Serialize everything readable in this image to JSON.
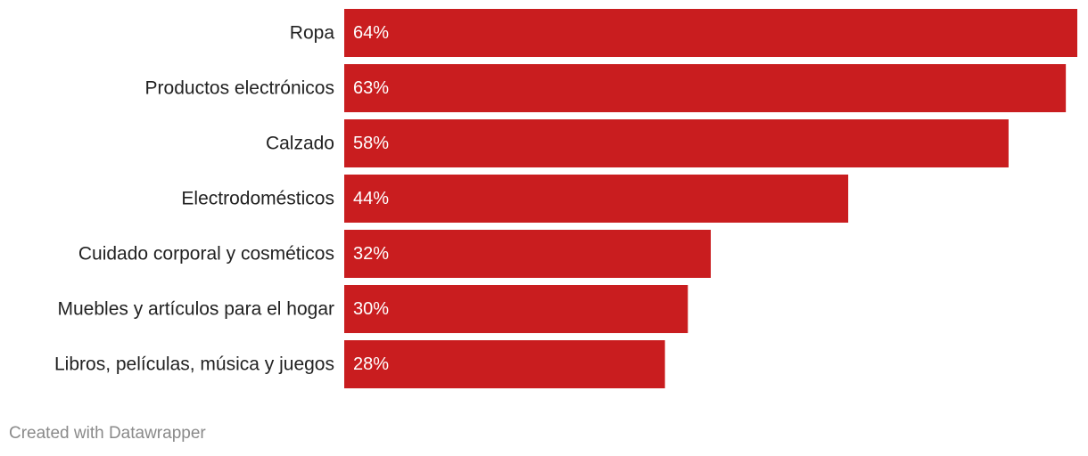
{
  "chart_data": {
    "type": "bar",
    "orientation": "horizontal",
    "categories": [
      "Ropa",
      "Productos electrónicos",
      "Calzado",
      "Electrodomésticos",
      "Cuidado corporal y cosméticos",
      "Muebles y artículos para el hogar",
      "Libros, películas, música y juegos"
    ],
    "values": [
      64,
      63,
      58,
      44,
      32,
      30,
      28
    ],
    "value_labels": [
      "64%",
      "63%",
      "58%",
      "44%",
      "32%",
      "30%",
      "28%"
    ],
    "unit": "%",
    "xlim": [
      0,
      64
    ],
    "grid": false,
    "legend": "none",
    "bar_color": "#c91d1f"
  },
  "footer": {
    "credit": "Created with Datawrapper"
  }
}
